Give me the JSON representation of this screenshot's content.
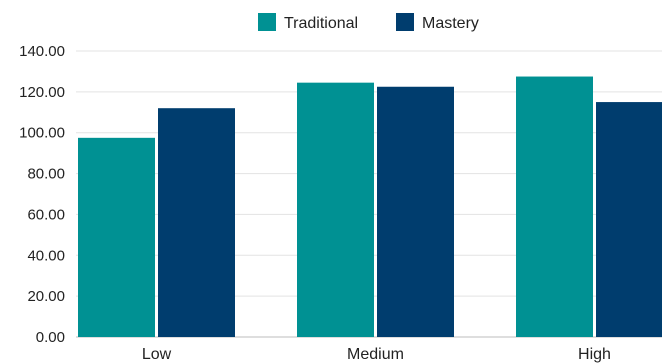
{
  "chart_data": {
    "type": "bar",
    "categories": [
      "Low",
      "Medium",
      "High"
    ],
    "series": [
      {
        "name": "Traditional",
        "color": "#009193",
        "values": [
          97.5,
          124.5,
          127.5
        ]
      },
      {
        "name": "Mastery",
        "color": "#003D6E",
        "values": [
          112,
          122.5,
          115
        ]
      }
    ],
    "y_ticks": [
      "0.00",
      "20.00",
      "40.00",
      "60.00",
      "80.00",
      "100.00",
      "120.00",
      "140.00"
    ],
    "ylim": [
      0,
      140
    ],
    "grid": true,
    "legend_position": "top-center"
  }
}
